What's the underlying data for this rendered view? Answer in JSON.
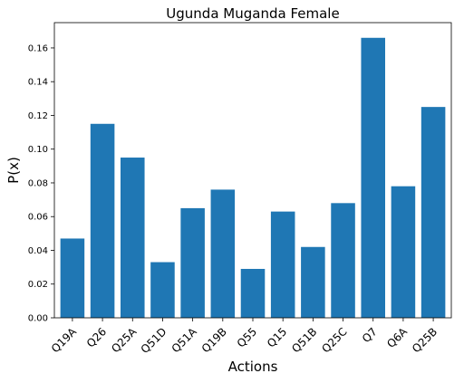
{
  "chart_data": {
    "type": "bar",
    "title": "Ugunda Muganda Female",
    "xlabel": "Actions",
    "ylabel": "P(x)",
    "categories": [
      "Q19A",
      "Q26",
      "Q25A",
      "Q51D",
      "Q51A",
      "Q19B",
      "Q55",
      "Q15",
      "Q51B",
      "Q25C",
      "Q7",
      "Q6A",
      "Q25B"
    ],
    "values": [
      0.047,
      0.115,
      0.095,
      0.033,
      0.065,
      0.076,
      0.029,
      0.063,
      0.042,
      0.068,
      0.166,
      0.078,
      0.125
    ],
    "ylim": [
      0,
      0.175
    ],
    "yticks": [
      "0.00",
      "0.02",
      "0.04",
      "0.06",
      "0.08",
      "0.10",
      "0.12",
      "0.14",
      "0.16"
    ],
    "grid": false,
    "bar_color": "#1f77b4"
  }
}
